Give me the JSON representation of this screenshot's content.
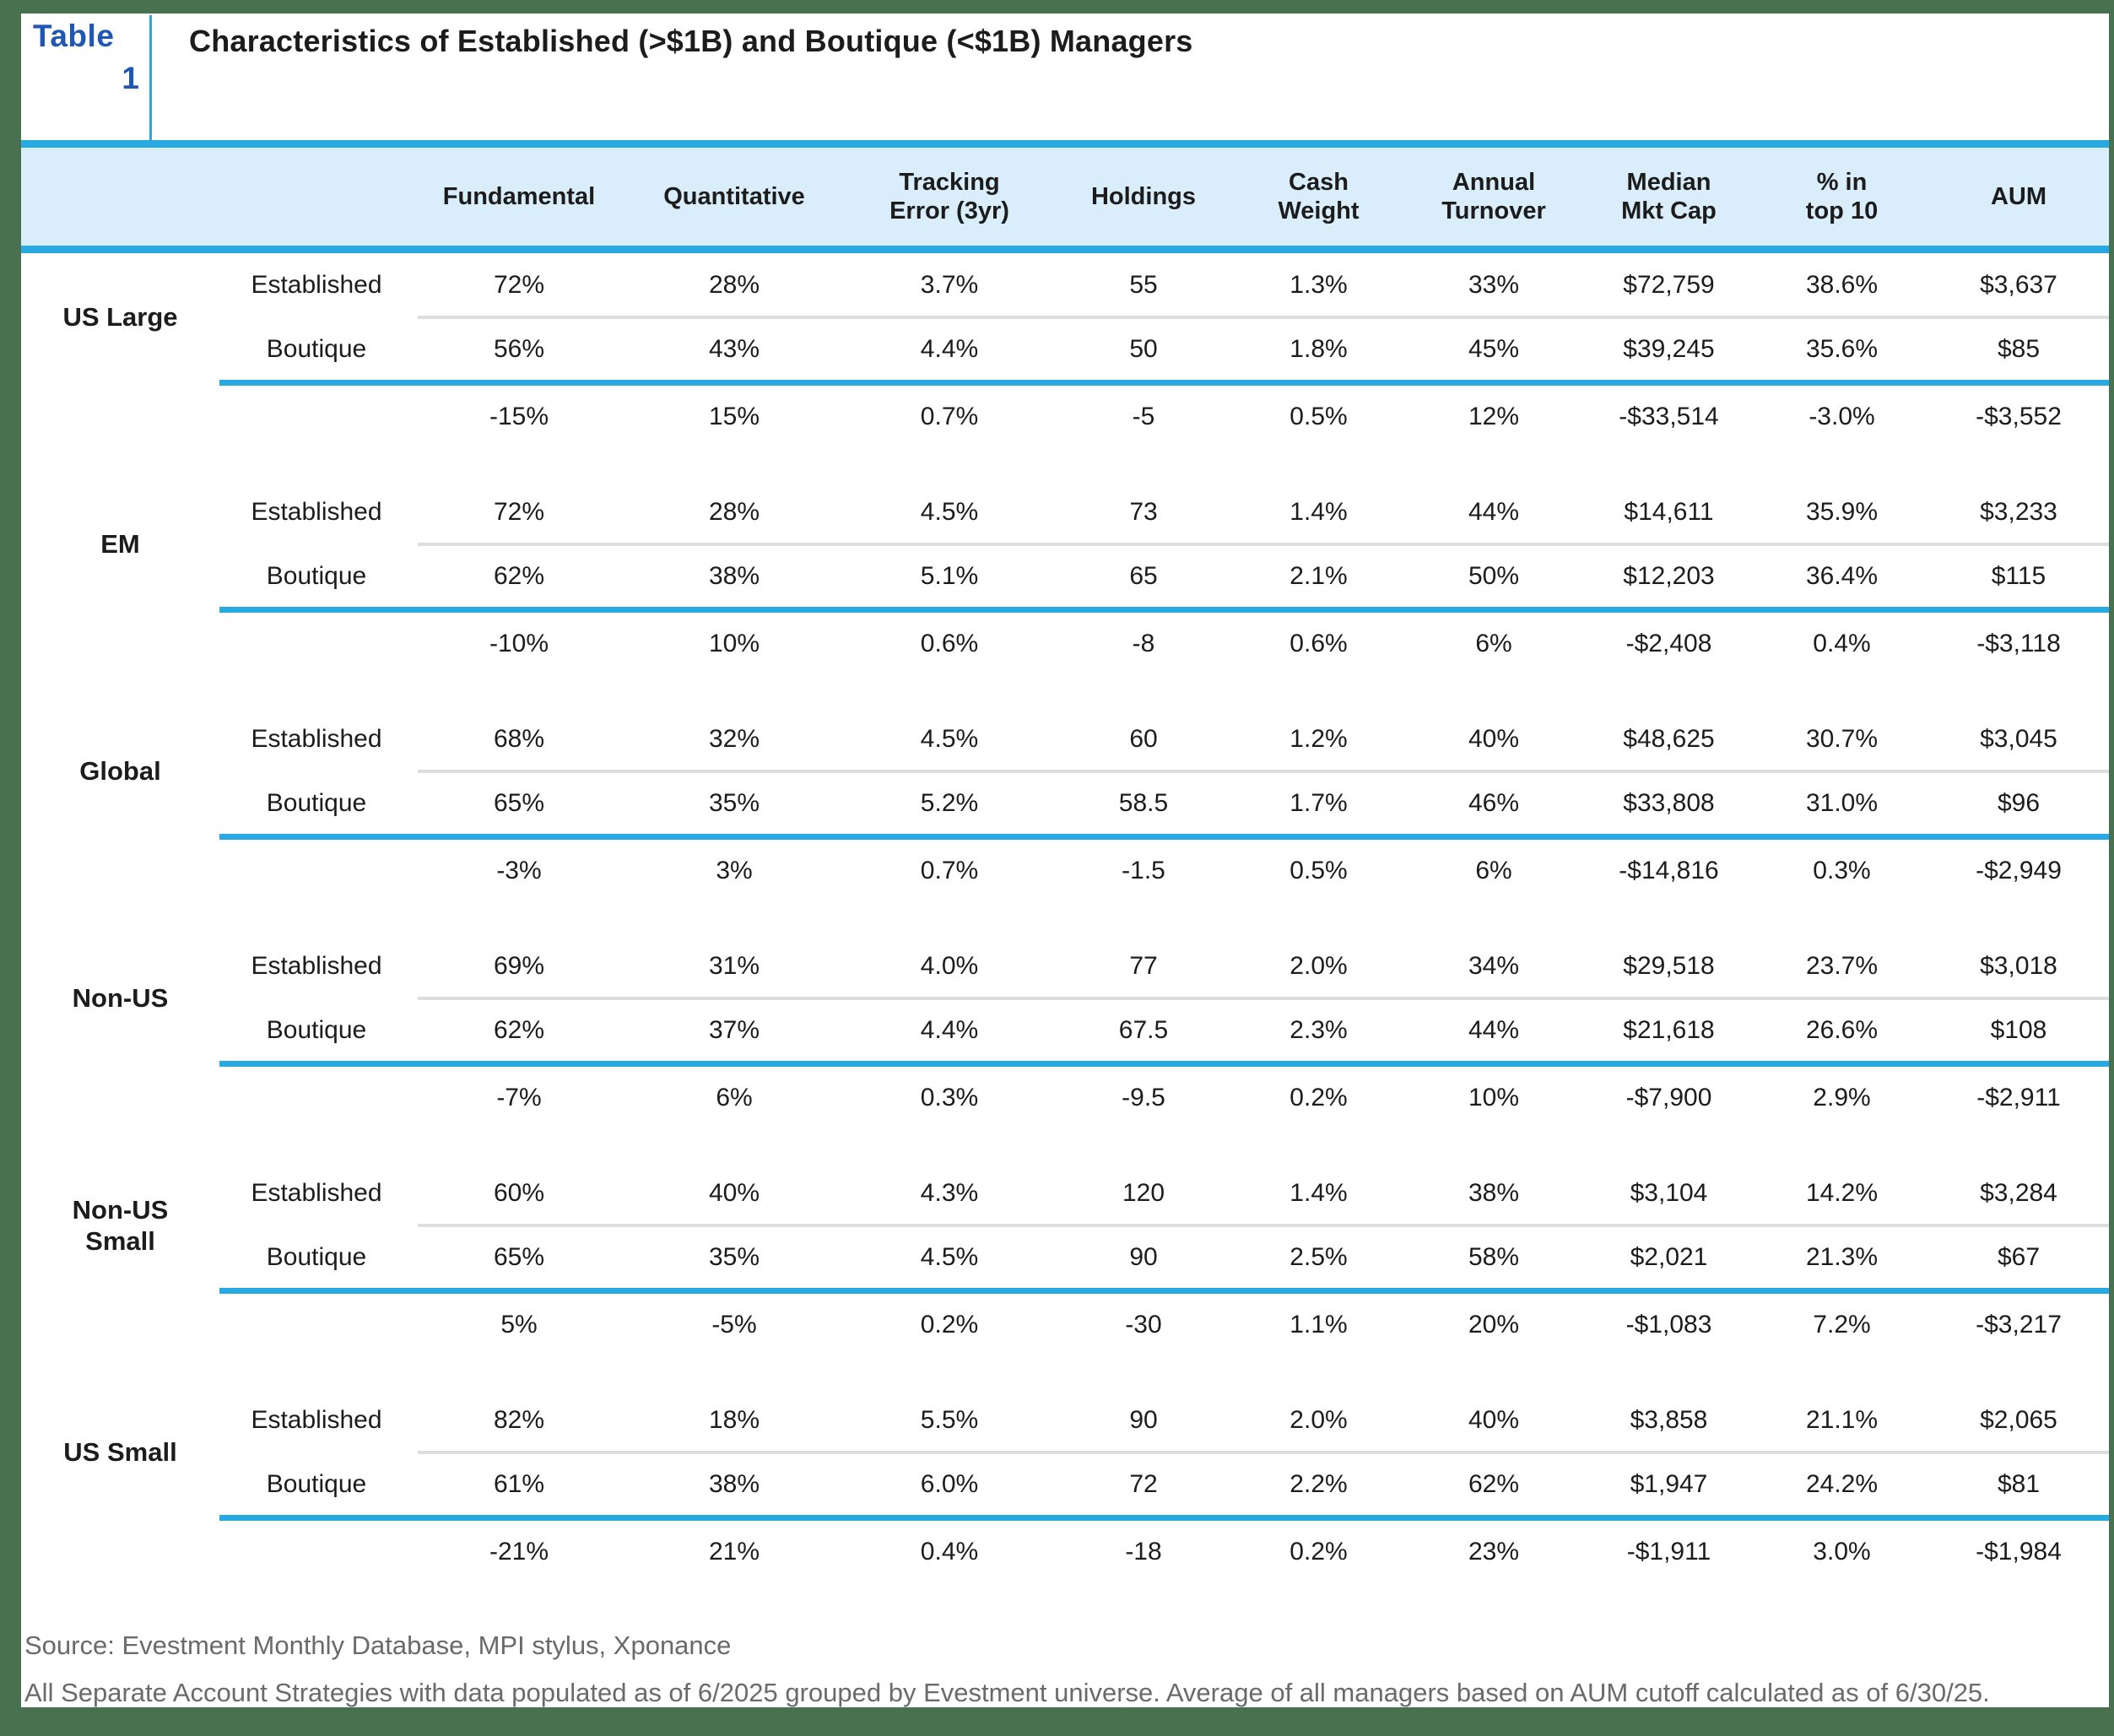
{
  "page": {
    "badge_word": "Table",
    "badge_number": "1",
    "title": "Characteristics of Established (>$1B) and Boutique (<$1B) Managers"
  },
  "colors": {
    "frame_green": "#48714F",
    "accent_blue": "#29A9E1",
    "header_band_bg": "#D9EEFA",
    "table_number_blue": "#2057B4",
    "text_dark": "#1C1C1C",
    "divider_gray": "#DEDEDE",
    "footnote_gray": "#6A6A6A"
  },
  "chart_data": {
    "type": "table",
    "title": "Characteristics of Established (>$1B) and Boutique (<$1B) Managers",
    "column_headers": [
      "Fundamental",
      "Quantitative",
      "Tracking Error (3yr)",
      "Holdings",
      "Cash Weight",
      "Annual Turnover",
      "Median Mkt Cap",
      "% in top 10",
      "AUM"
    ],
    "column_headers_display": [
      "Fundamental",
      "Quantitative",
      "Tracking\nError (3yr)",
      "Holdings",
      "Cash\nWeight",
      "Annual\nTurnover",
      "Median\nMkt Cap",
      "% in\ntop 10",
      "AUM"
    ],
    "row_labels": {
      "established": "Established",
      "boutique": "Boutique"
    },
    "groups": [
      {
        "name": "US Large",
        "established": [
          "72%",
          "28%",
          "3.7%",
          "55",
          "1.3%",
          "33%",
          "$72,759",
          "38.6%",
          "$3,637"
        ],
        "boutique": [
          "56%",
          "43%",
          "4.4%",
          "50",
          "1.8%",
          "45%",
          "$39,245",
          "35.6%",
          "$85"
        ],
        "difference": [
          "-15%",
          "15%",
          "0.7%",
          "-5",
          "0.5%",
          "12%",
          "-$33,514",
          "-3.0%",
          "-$3,552"
        ]
      },
      {
        "name": "EM",
        "established": [
          "72%",
          "28%",
          "4.5%",
          "73",
          "1.4%",
          "44%",
          "$14,611",
          "35.9%",
          "$3,233"
        ],
        "boutique": [
          "62%",
          "38%",
          "5.1%",
          "65",
          "2.1%",
          "50%",
          "$12,203",
          "36.4%",
          "$115"
        ],
        "difference": [
          "-10%",
          "10%",
          "0.6%",
          "-8",
          "0.6%",
          "6%",
          "-$2,408",
          "0.4%",
          "-$3,118"
        ]
      },
      {
        "name": "Global",
        "established": [
          "68%",
          "32%",
          "4.5%",
          "60",
          "1.2%",
          "40%",
          "$48,625",
          "30.7%",
          "$3,045"
        ],
        "boutique": [
          "65%",
          "35%",
          "5.2%",
          "58.5",
          "1.7%",
          "46%",
          "$33,808",
          "31.0%",
          "$96"
        ],
        "difference": [
          "-3%",
          "3%",
          "0.7%",
          "-1.5",
          "0.5%",
          "6%",
          "-$14,816",
          "0.3%",
          "-$2,949"
        ]
      },
      {
        "name": "Non-US",
        "established": [
          "69%",
          "31%",
          "4.0%",
          "77",
          "2.0%",
          "34%",
          "$29,518",
          "23.7%",
          "$3,018"
        ],
        "boutique": [
          "62%",
          "37%",
          "4.4%",
          "67.5",
          "2.3%",
          "44%",
          "$21,618",
          "26.6%",
          "$108"
        ],
        "difference": [
          "-7%",
          "6%",
          "0.3%",
          "-9.5",
          "0.2%",
          "10%",
          "-$7,900",
          "2.9%",
          "-$2,911"
        ]
      },
      {
        "name": "Non-US Small",
        "established": [
          "60%",
          "40%",
          "4.3%",
          "120",
          "1.4%",
          "38%",
          "$3,104",
          "14.2%",
          "$3,284"
        ],
        "boutique": [
          "65%",
          "35%",
          "4.5%",
          "90",
          "2.5%",
          "58%",
          "$2,021",
          "21.3%",
          "$67"
        ],
        "difference": [
          "5%",
          "-5%",
          "0.2%",
          "-30",
          "1.1%",
          "20%",
          "-$1,083",
          "7.2%",
          "-$3,217"
        ]
      },
      {
        "name": "US Small",
        "established": [
          "82%",
          "18%",
          "5.5%",
          "90",
          "2.0%",
          "40%",
          "$3,858",
          "21.1%",
          "$2,065"
        ],
        "boutique": [
          "61%",
          "38%",
          "6.0%",
          "72",
          "2.2%",
          "62%",
          "$1,947",
          "24.2%",
          "$81"
        ],
        "difference": [
          "-21%",
          "21%",
          "0.4%",
          "-18",
          "0.2%",
          "23%",
          "-$1,911",
          "3.0%",
          "-$1,984"
        ]
      }
    ]
  },
  "footer": {
    "source": "Source: Evestment Monthly Database, MPI stylus, Xponance",
    "note": "All Separate Account Strategies with data populated as of 6/2025 grouped by Evestment universe. Average of all managers based on AUM cutoff calculated as of 6/30/25."
  }
}
